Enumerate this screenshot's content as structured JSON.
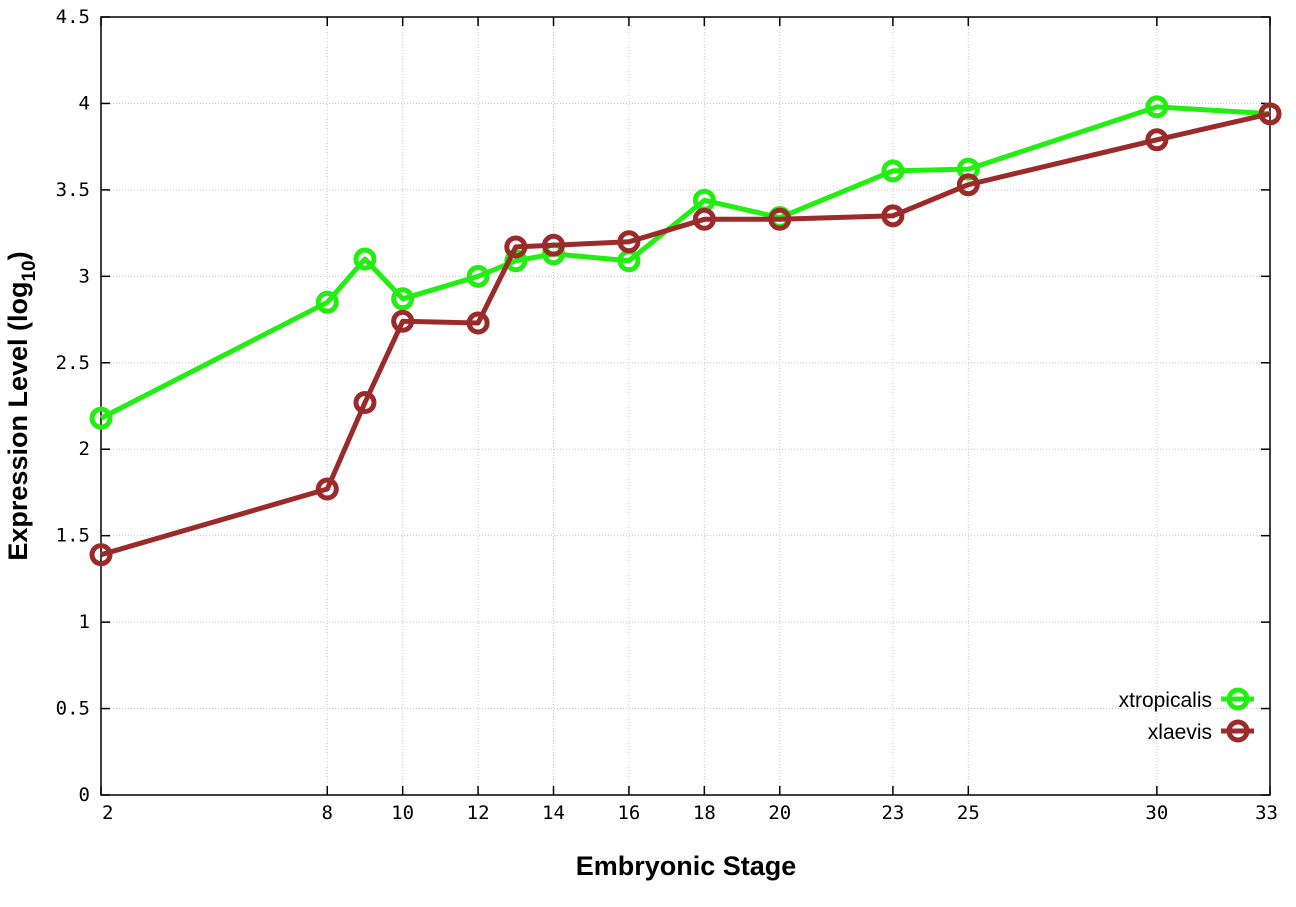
{
  "chart_data": {
    "type": "line",
    "xlabel": "Embryonic Stage",
    "ylabel": "Expression Level (log",
    "ylabel_sub": "10",
    "ylabel_close": ")",
    "x_tick_values": [
      2,
      8,
      10,
      12,
      14,
      16,
      18,
      20,
      23,
      25,
      30,
      33
    ],
    "x_tick_labels": [
      "2",
      "8",
      "10",
      "12",
      "14",
      "16",
      "18",
      "20",
      "23",
      "25",
      "30",
      "33"
    ],
    "y_tick_values": [
      0,
      0.5,
      1,
      1.5,
      2,
      2.5,
      3,
      3.5,
      4,
      4.5
    ],
    "y_tick_labels": [
      "0",
      "0.5",
      "1",
      "1.5",
      "2",
      "2.5",
      "3",
      "3.5",
      "4",
      "4.5"
    ],
    "xlim": [
      2,
      33
    ],
    "ylim": [
      0,
      4.5
    ],
    "grid": true,
    "legend_position": "bottom-right",
    "series": [
      {
        "name": "xtropicalis",
        "color": "#22ee11",
        "x": [
          2,
          8,
          9,
          10,
          12,
          13,
          14,
          16,
          18,
          20,
          23,
          25,
          30,
          33
        ],
        "y": [
          2.18,
          2.85,
          3.1,
          2.87,
          3.0,
          3.09,
          3.13,
          3.09,
          3.44,
          3.34,
          3.61,
          3.62,
          3.98,
          3.94
        ]
      },
      {
        "name": "xlaevis",
        "color": "#9b2a2a",
        "x": [
          2,
          8,
          9,
          10,
          12,
          13,
          14,
          16,
          18,
          20,
          23,
          25,
          30,
          33
        ],
        "y": [
          1.39,
          1.77,
          2.27,
          2.74,
          2.73,
          3.17,
          3.18,
          3.2,
          3.33,
          3.33,
          3.35,
          3.53,
          3.79,
          3.94
        ]
      }
    ]
  }
}
